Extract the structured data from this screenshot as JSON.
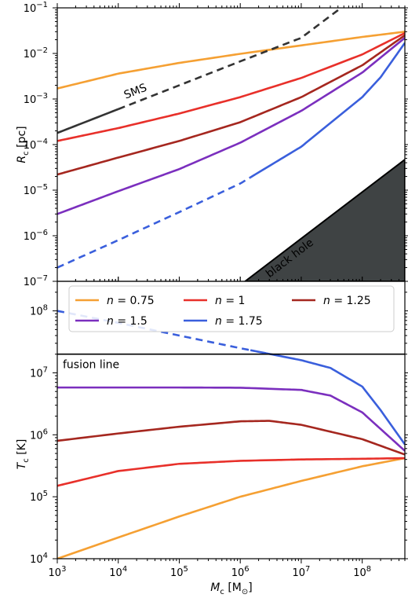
{
  "chart_data": [
    {
      "type": "line",
      "panel": "top",
      "xlabel_base": "M",
      "xlabel_sub": "c",
      "xlabel_unit": "[M",
      "xlabel_unit_sub": "⊙",
      "xlabel_unit_close": "]",
      "ylabel_base": "R",
      "ylabel_sub": "c",
      "ylabel_unit": "[pc]",
      "x_scale": "log",
      "y_scale": "log",
      "xlim": [
        1000,
        500000000
      ],
      "ylim": [
        1e-07,
        0.1
      ],
      "x_ticks": [
        1000,
        10000,
        100000,
        1000000,
        10000000,
        100000000
      ],
      "x_tick_labels": [
        {
          "base": "10",
          "exp": "3"
        },
        {
          "base": "10",
          "exp": "4"
        },
        {
          "base": "10",
          "exp": "5"
        },
        {
          "base": "10",
          "exp": "6"
        },
        {
          "base": "10",
          "exp": "7"
        },
        {
          "base": "10",
          "exp": "8"
        }
      ],
      "y_ticks": [
        1e-07,
        1e-06,
        1e-05,
        0.0001,
        0.001,
        0.01,
        0.1
      ],
      "y_tick_labels": [
        {
          "base": "10",
          "exp": "−7"
        },
        {
          "base": "10",
          "exp": "−6"
        },
        {
          "base": "10",
          "exp": "−5"
        },
        {
          "base": "10",
          "exp": "−4"
        },
        {
          "base": "10",
          "exp": "−3"
        },
        {
          "base": "10",
          "exp": "−2"
        },
        {
          "base": "10",
          "exp": "−1"
        }
      ],
      "grid": false,
      "series": [
        {
          "name": "n = 0.75",
          "color": "#f5a033",
          "x": [
            1000,
            10000,
            100000,
            1000000,
            10000000,
            100000000,
            500000000
          ],
          "y": [
            0.0017,
            0.0036,
            0.0062,
            0.0098,
            0.015,
            0.023,
            0.03
          ]
        },
        {
          "name": "n = 1",
          "color": "#e8302a",
          "x": [
            1000,
            10000,
            100000,
            1000000,
            10000000,
            100000000,
            500000000
          ],
          "y": [
            0.00012,
            0.00023,
            0.00048,
            0.0011,
            0.0029,
            0.0095,
            0.028
          ]
        },
        {
          "name": "n = 1.25",
          "color": "#a5271f",
          "x": [
            1000,
            10000,
            100000,
            1000000,
            10000000,
            100000000,
            500000000
          ],
          "y": [
            2.2e-05,
            5.2e-05,
            0.00012,
            0.00031,
            0.0011,
            0.0055,
            0.025
          ]
        },
        {
          "name": "n = 1.5",
          "color": "#7b2fbe",
          "x": [
            1000,
            10000,
            100000,
            1000000,
            10000000,
            100000000,
            500000000
          ],
          "y": [
            3e-06,
            9.5e-06,
            2.9e-05,
            0.00011,
            0.00055,
            0.0038,
            0.022
          ]
        },
        {
          "name": "n = 1.75",
          "color": "#3a5fdc",
          "x": [
            1000,
            10000,
            100000,
            1000000,
            10000000,
            100000000,
            200000000,
            500000000
          ],
          "y": [
            2e-07,
            8e-07,
            3.3e-06,
            1.4e-05,
            9e-05,
            0.0011,
            0.003,
            0.017
          ],
          "dashed_below_x": 1500000
        },
        {
          "name": "SMS",
          "color": "#333333",
          "x": [
            1000,
            10000,
            100000,
            1000000,
            10000000,
            45000000
          ],
          "y": [
            0.00018,
            0.0006,
            0.002,
            0.0067,
            0.022,
            0.1
          ],
          "dashed_above_x": 10000
        }
      ],
      "shaded_region": {
        "label": "black hole",
        "color": "#3f4344",
        "boundary_x": [
          1200000,
          500000000
        ],
        "boundary_y": [
          1e-07,
          4.7e-05
        ]
      },
      "annotations": [
        {
          "text": "SMS"
        },
        {
          "text": "black hole"
        }
      ]
    },
    {
      "type": "line",
      "panel": "bottom",
      "xlabel_base": "M",
      "xlabel_sub": "c",
      "xlabel_unit": "[M",
      "xlabel_unit_sub": "⊙",
      "xlabel_unit_close": "]",
      "ylabel_base": "T",
      "ylabel_sub": "c",
      "ylabel_unit": "[K]",
      "x_scale": "log",
      "y_scale": "log",
      "xlim": [
        1000,
        500000000
      ],
      "ylim": [
        10000,
        300000000
      ],
      "y_ticks": [
        10000,
        100000,
        1000000,
        10000000,
        100000000
      ],
      "y_tick_labels": [
        {
          "base": "10",
          "exp": "4"
        },
        {
          "base": "10",
          "exp": "5"
        },
        {
          "base": "10",
          "exp": "6"
        },
        {
          "base": "10",
          "exp": "7"
        },
        {
          "base": "10",
          "exp": "8"
        }
      ],
      "grid": false,
      "legend_placement": "upper",
      "fusion_line": {
        "label": "fusion line",
        "y": 20000000
      },
      "series": [
        {
          "name": "n = 0.75",
          "color": "#f5a033",
          "x": [
            1000,
            10000,
            100000,
            1000000,
            10000000,
            100000000,
            500000000
          ],
          "y": [
            10000,
            22000,
            48000,
            100000,
            180000,
            310000,
            420000
          ]
        },
        {
          "name": "n = 1",
          "color": "#e8302a",
          "x": [
            1000,
            10000,
            100000,
            1000000,
            10000000,
            100000000,
            500000000
          ],
          "y": [
            150000,
            260000,
            340000,
            380000,
            400000,
            410000,
            420000
          ]
        },
        {
          "name": "n = 1.25",
          "color": "#a5271f",
          "x": [
            1000,
            10000,
            100000,
            1000000,
            3000000,
            10000000,
            100000000,
            500000000
          ],
          "y": [
            800000,
            1050000,
            1350000,
            1650000,
            1680000,
            1450000,
            850000,
            480000
          ]
        },
        {
          "name": "n = 1.5",
          "color": "#7b2fbe",
          "x": [
            1000,
            10000,
            100000,
            1000000,
            10000000,
            30000000,
            100000000,
            500000000
          ],
          "y": [
            5800000,
            5800000,
            5800000,
            5750000,
            5300000,
            4300000,
            2300000,
            550000
          ]
        },
        {
          "name": "n = 1.75",
          "color": "#3a5fdc",
          "x": [
            1000,
            10000,
            100000,
            1000000,
            10000000,
            30000000,
            100000000,
            200000000,
            500000000
          ],
          "y": [
            100000000,
            64000000,
            40000000,
            25000000,
            16000000,
            12000000,
            6000000,
            2500000,
            700000
          ],
          "dashed_below_x": 1500000
        }
      ],
      "legend": [
        {
          "prefix": "n",
          "value": " = 0.75",
          "color": "#f5a033"
        },
        {
          "prefix": "n",
          "value": " = 1",
          "color": "#e8302a"
        },
        {
          "prefix": "n",
          "value": " = 1.25",
          "color": "#a5271f"
        },
        {
          "prefix": "n",
          "value": " = 1.5",
          "color": "#7b2fbe"
        },
        {
          "prefix": "n",
          "value": " = 1.75",
          "color": "#3a5fdc"
        }
      ]
    }
  ]
}
